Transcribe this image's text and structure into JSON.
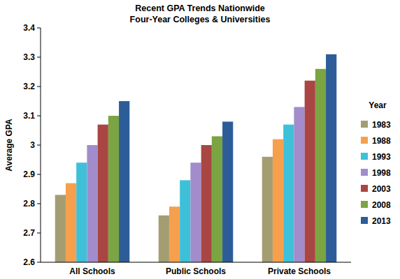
{
  "chart_data": {
    "type": "bar",
    "title": "Recent GPA Trends Nationwide",
    "subtitle": "Four-Year Colleges & Universities",
    "y_label": "Average GPA",
    "legend_title": "Year",
    "legend": "right",
    "grid": false,
    "categories": [
      "All Schools",
      "Public Schools",
      "Private Schools"
    ],
    "series": [
      {
        "name": "1983",
        "color": "#a59d72",
        "values": [
          2.83,
          2.76,
          2.96
        ]
      },
      {
        "name": "1988",
        "color": "#f6a04d",
        "values": [
          2.87,
          2.79,
          3.02
        ]
      },
      {
        "name": "1993",
        "color": "#3ec0d9",
        "values": [
          2.94,
          2.88,
          3.07
        ]
      },
      {
        "name": "1998",
        "color": "#a28ccb",
        "values": [
          3.0,
          2.94,
          3.13
        ]
      },
      {
        "name": "2003",
        "color": "#a94643",
        "values": [
          3.07,
          3.0,
          3.22
        ]
      },
      {
        "name": "2008",
        "color": "#7ba442",
        "values": [
          3.1,
          3.03,
          3.26
        ]
      },
      {
        "name": "2013",
        "color": "#2c5d98",
        "values": [
          3.15,
          3.08,
          3.31
        ]
      }
    ],
    "ylim": [
      2.6,
      3.4
    ],
    "yticks": [
      2.6,
      2.7,
      2.8,
      2.9,
      3,
      3.1,
      3.2,
      3.3,
      3.4
    ]
  }
}
